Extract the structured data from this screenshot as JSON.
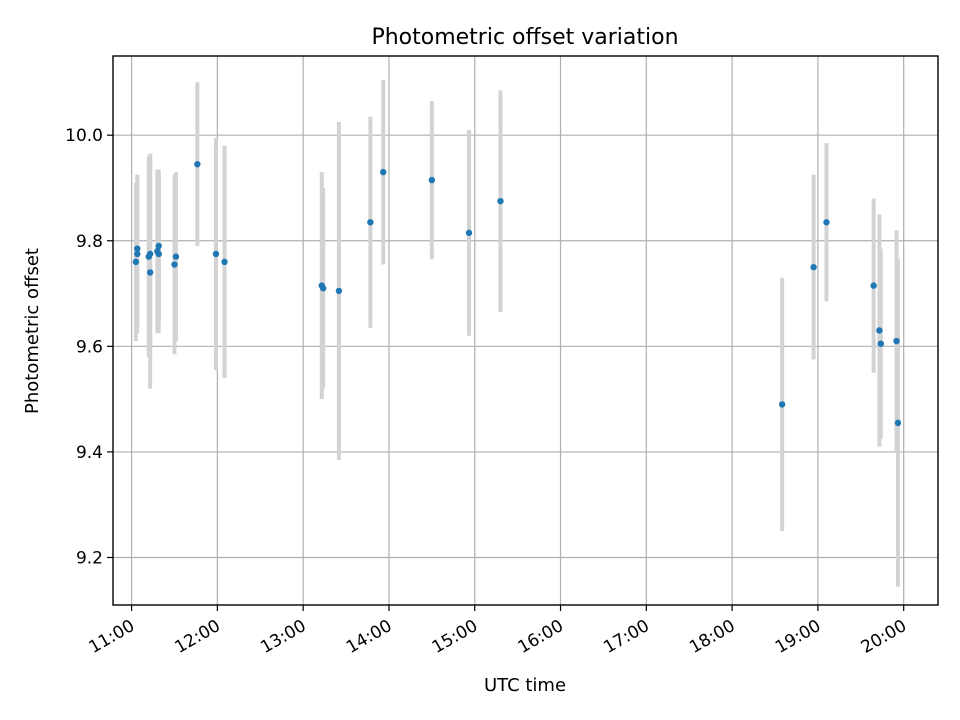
{
  "chart_data": {
    "type": "scatter",
    "title": "Photometric offset variation",
    "xlabel": "UTC time",
    "ylabel": "Photometric offset",
    "x_ticks": [
      "11:00",
      "12:00",
      "13:00",
      "14:00",
      "15:00",
      "16:00",
      "17:00",
      "18:00",
      "19:00",
      "20:00"
    ],
    "y_ticks": [
      "9.2",
      "9.4",
      "9.6",
      "9.8",
      "10.0"
    ],
    "xlim": [
      "10:47",
      "20:24"
    ],
    "ylim": [
      9.11,
      10.15
    ],
    "grid": true,
    "colors": {
      "point": "#1f77b4",
      "errorbar": "#d3d3d3"
    },
    "points": [
      {
        "t": "11:03",
        "y": 9.76,
        "err": 0.15
      },
      {
        "t": "11:04",
        "y": 9.775,
        "err": 0.15
      },
      {
        "t": "11:04",
        "y": 9.785,
        "err": 0.14
      },
      {
        "t": "11:12",
        "y": 9.77,
        "err": 0.19
      },
      {
        "t": "11:13",
        "y": 9.74,
        "err": 0.22
      },
      {
        "t": "11:13",
        "y": 9.775,
        "err": 0.19
      },
      {
        "t": "11:18",
        "y": 9.78,
        "err": 0.155
      },
      {
        "t": "11:19",
        "y": 9.79,
        "err": 0.145
      },
      {
        "t": "11:19",
        "y": 9.775,
        "err": 0.15
      },
      {
        "t": "11:30",
        "y": 9.755,
        "err": 0.17
      },
      {
        "t": "11:31",
        "y": 9.77,
        "err": 0.16
      },
      {
        "t": "11:46",
        "y": 9.945,
        "err": 0.155
      },
      {
        "t": "11:59",
        "y": 9.775,
        "err": 0.22
      },
      {
        "t": "12:05",
        "y": 9.76,
        "err": 0.22
      },
      {
        "t": "13:13",
        "y": 9.715,
        "err": 0.215
      },
      {
        "t": "13:14",
        "y": 9.71,
        "err": 0.19
      },
      {
        "t": "13:25",
        "y": 9.705,
        "err": 0.32
      },
      {
        "t": "13:47",
        "y": 9.835,
        "err": 0.2
      },
      {
        "t": "13:56",
        "y": 9.93,
        "err": 0.175
      },
      {
        "t": "14:30",
        "y": 9.915,
        "err": 0.15
      },
      {
        "t": "14:56",
        "y": 9.815,
        "err": 0.195
      },
      {
        "t": "15:18",
        "y": 9.875,
        "err": 0.21
      },
      {
        "t": "18:35",
        "y": 9.49,
        "err": 0.24
      },
      {
        "t": "18:57",
        "y": 9.75,
        "err": 0.175
      },
      {
        "t": "19:06",
        "y": 9.835,
        "err": 0.15
      },
      {
        "t": "19:39",
        "y": 9.715,
        "err": 0.165
      },
      {
        "t": "19:43",
        "y": 9.63,
        "err": 0.22
      },
      {
        "t": "19:44",
        "y": 9.605,
        "err": 0.18
      },
      {
        "t": "19:55",
        "y": 9.61,
        "err": 0.21
      },
      {
        "t": "19:56",
        "y": 9.455,
        "err": 0.31
      }
    ]
  }
}
